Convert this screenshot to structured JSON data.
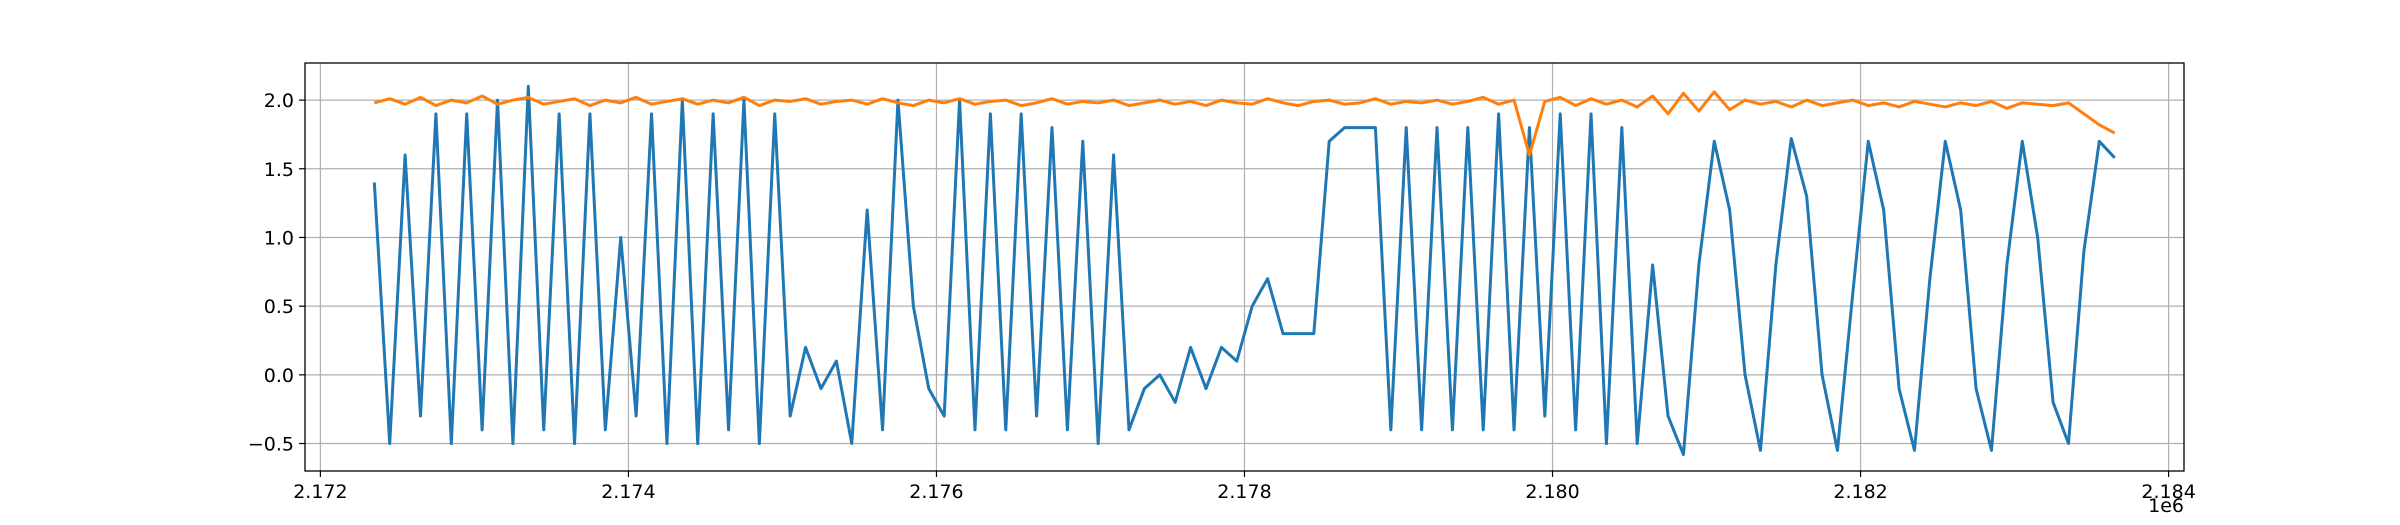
{
  "chart_data": {
    "type": "line",
    "x": [
      2172350,
      2172450,
      2172550,
      2172650,
      2172750,
      2172850,
      2172950,
      2173050,
      2173150,
      2173250,
      2173350,
      2173450,
      2173550,
      2173650,
      2173750,
      2173850,
      2173950,
      2174050,
      2174150,
      2174250,
      2174350,
      2174450,
      2174550,
      2174650,
      2174750,
      2174850,
      2174950,
      2175050,
      2175150,
      2175250,
      2175350,
      2175450,
      2175550,
      2175650,
      2175750,
      2175850,
      2175950,
      2176050,
      2176150,
      2176250,
      2176350,
      2176450,
      2176550,
      2176650,
      2176750,
      2176850,
      2176950,
      2177050,
      2177150,
      2177250,
      2177350,
      2177450,
      2177550,
      2177650,
      2177750,
      2177850,
      2177950,
      2178050,
      2178150,
      2178250,
      2178350,
      2178450,
      2178550,
      2178650,
      2178750,
      2178850,
      2178950,
      2179050,
      2179150,
      2179250,
      2179350,
      2179450,
      2179550,
      2179650,
      2179750,
      2179850,
      2179950,
      2180050,
      2180150,
      2180250,
      2180350,
      2180450,
      2180550,
      2180650,
      2180750,
      2180850,
      2180950,
      2181050,
      2181150,
      2181250,
      2181350,
      2181450,
      2181550,
      2181650,
      2181750,
      2181850,
      2181950,
      2182050,
      2182150,
      2182250,
      2182350,
      2182450,
      2182550,
      2182650,
      2182750,
      2182850,
      2182950,
      2183050,
      2183150,
      2183250,
      2183350,
      2183450,
      2183550,
      2183650
    ],
    "series": [
      {
        "color": "#1f77b4",
        "values": [
          1.4,
          -0.5,
          1.6,
          -0.3,
          1.9,
          -0.5,
          1.9,
          -0.4,
          2.0,
          -0.5,
          2.1,
          -0.4,
          1.9,
          -0.5,
          1.9,
          -0.4,
          1.0,
          -0.3,
          1.9,
          -0.5,
          2.0,
          -0.5,
          1.9,
          -0.4,
          2.0,
          -0.5,
          1.9,
          -0.3,
          0.2,
          -0.1,
          0.1,
          -0.5,
          1.2,
          -0.4,
          2.0,
          0.5,
          -0.1,
          -0.3,
          2.0,
          -0.4,
          1.9,
          -0.4,
          1.9,
          -0.3,
          1.8,
          -0.4,
          1.7,
          -0.5,
          1.6,
          -0.4,
          -0.1,
          0.0,
          -0.2,
          0.2,
          -0.1,
          0.2,
          0.1,
          0.5,
          0.7,
          0.3,
          0.3,
          0.3,
          1.7,
          1.8,
          1.8,
          1.8,
          -0.4,
          1.8,
          -0.4,
          1.8,
          -0.4,
          1.8,
          -0.4,
          1.9,
          -0.4,
          1.8,
          -0.3,
          1.9,
          -0.4,
          1.9,
          -0.5,
          1.8,
          -0.5,
          0.8,
          -0.3,
          -0.58,
          0.8,
          1.7,
          1.2,
          0.0,
          -0.55,
          0.8,
          1.72,
          1.3,
          0.0,
          -0.55,
          0.6,
          1.7,
          1.2,
          -0.1,
          -0.55,
          0.7,
          1.7,
          1.2,
          -0.1,
          -0.55,
          0.8,
          1.7,
          1.0,
          -0.2,
          -0.5,
          0.9,
          1.7,
          1.58
        ]
      },
      {
        "color": "#ff7f0e",
        "values": [
          1.98,
          2.01,
          1.97,
          2.02,
          1.96,
          2.0,
          1.98,
          2.03,
          1.97,
          2.0,
          2.02,
          1.97,
          1.99,
          2.01,
          1.96,
          2.0,
          1.98,
          2.02,
          1.97,
          1.99,
          2.01,
          1.97,
          2.0,
          1.98,
          2.02,
          1.96,
          2.0,
          1.99,
          2.01,
          1.97,
          1.99,
          2.0,
          1.97,
          2.01,
          1.98,
          1.96,
          2.0,
          1.98,
          2.01,
          1.97,
          1.99,
          2.0,
          1.96,
          1.98,
          2.01,
          1.97,
          1.99,
          1.98,
          2.0,
          1.96,
          1.98,
          2.0,
          1.97,
          1.99,
          1.96,
          2.0,
          1.98,
          1.97,
          2.01,
          1.98,
          1.96,
          1.99,
          2.0,
          1.97,
          1.98,
          2.01,
          1.97,
          1.99,
          1.98,
          2.0,
          1.97,
          1.99,
          2.02,
          1.97,
          2.0,
          1.6,
          1.99,
          2.02,
          1.96,
          2.01,
          1.97,
          2.0,
          1.95,
          2.03,
          1.9,
          2.05,
          1.92,
          2.06,
          1.93,
          2.0,
          1.97,
          1.99,
          1.95,
          2.0,
          1.96,
          1.98,
          2.0,
          1.96,
          1.98,
          1.95,
          1.99,
          1.97,
          1.95,
          1.98,
          1.96,
          1.99,
          1.94,
          1.98,
          1.97,
          1.96,
          1.98,
          1.9,
          1.82,
          1.76
        ]
      }
    ],
    "xlim": [
      2171900,
      2184100
    ],
    "xticks": [
      {
        "value": 2172000,
        "label": "2.172"
      },
      {
        "value": 2174000,
        "label": "2.174"
      },
      {
        "value": 2176000,
        "label": "2.176"
      },
      {
        "value": 2178000,
        "label": "2.178"
      },
      {
        "value": 2180000,
        "label": "2.180"
      },
      {
        "value": 2182000,
        "label": "2.182"
      },
      {
        "value": 2184000,
        "label": "2.184"
      }
    ],
    "x_offset_label": "1e6",
    "ylim": [
      -0.7,
      2.27
    ],
    "yticks": [
      {
        "value": -0.5,
        "label": "−0.5"
      },
      {
        "value": 0,
        "label": "0.0"
      },
      0.5,
      {
        "value": 1,
        "label": "1.0"
      },
      1.5,
      {
        "value": 2,
        "label": "2.0"
      }
    ],
    "grid": true
  }
}
